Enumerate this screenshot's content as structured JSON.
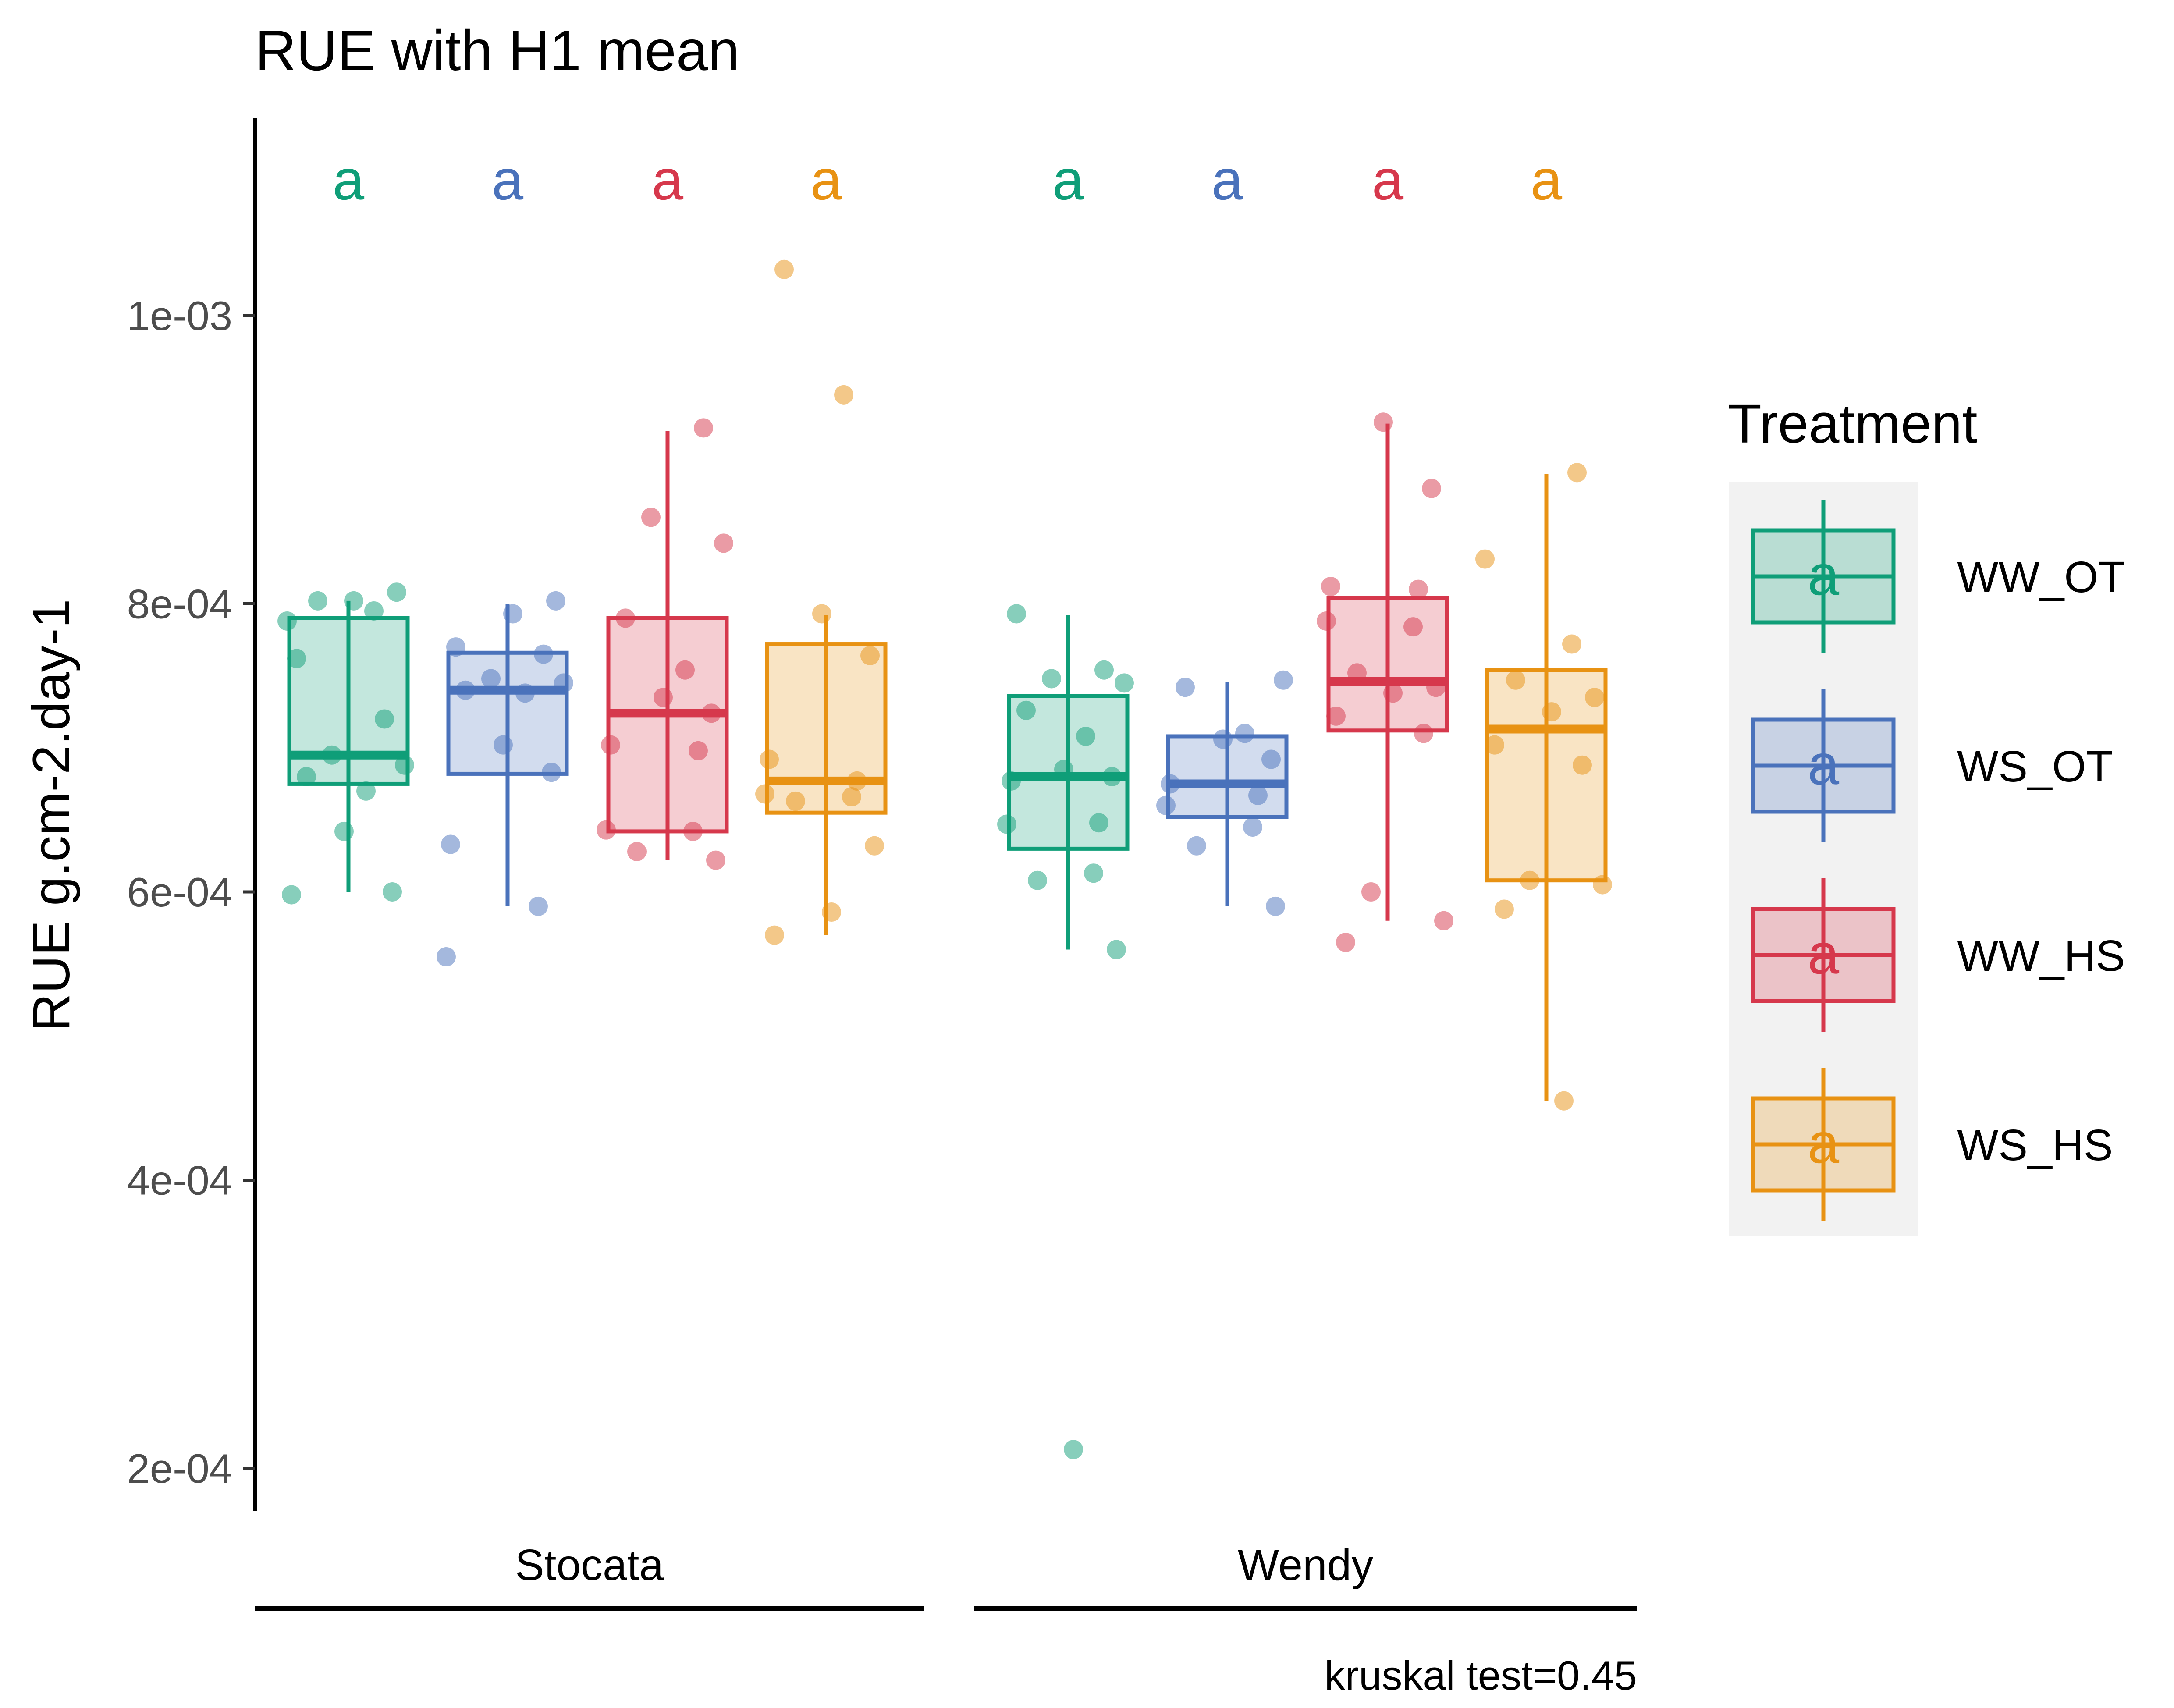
{
  "chart_data": {
    "type": "box",
    "title": "RUE with H1 mean",
    "ylabel": "RUE g.cm-2.day-1",
    "xlabel": "",
    "caption": "kruskal test=0.45",
    "ylim": [
      0.000168,
      0.001152
    ],
    "yticks": [
      {
        "value": 0.0002,
        "label": "2e-04"
      },
      {
        "value": 0.0004,
        "label": "4e-04"
      },
      {
        "value": 0.0006,
        "label": "6e-04"
      },
      {
        "value": 0.0008,
        "label": "8e-04"
      },
      {
        "value": 0.001,
        "label": "1e-03"
      }
    ],
    "legend": {
      "title": "Treatment",
      "position": "right",
      "items": [
        {
          "name": "WW_OT",
          "color": "#0f9e78"
        },
        {
          "name": "WS_OT",
          "color": "#4a72bb"
        },
        {
          "name": "WW_HS",
          "color": "#d6384c"
        },
        {
          "name": "WS_HS",
          "color": "#e89213"
        }
      ],
      "key_glyph": "a"
    },
    "facets": [
      {
        "label": "Stocata",
        "groups": [
          {
            "treatment": "WW_OT",
            "sig": "a",
            "min": 0.0006,
            "q1": 0.000675,
            "median": 0.000695,
            "q3": 0.00079,
            "max": 0.000802,
            "points": [
              0.000788,
              0.000795,
              0.000802,
              0.000808,
              0.000802,
              0.000762,
              0.00072,
              0.000695,
              0.000688,
              0.00068,
              0.00067,
              0.000642,
              0.0006,
              0.000598
            ]
          },
          {
            "treatment": "WS_OT",
            "sig": "a",
            "min": 0.00059,
            "q1": 0.000682,
            "median": 0.00074,
            "q3": 0.000766,
            "max": 0.0008,
            "points": [
              0.000802,
              0.000793,
              0.00077,
              0.000765,
              0.000748,
              0.000745,
              0.00074,
              0.000738,
              0.000702,
              0.000683,
              0.000633,
              0.00059,
              0.000555
            ]
          },
          {
            "treatment": "WW_HS",
            "sig": "a",
            "min": 0.000622,
            "q1": 0.000642,
            "median": 0.000724,
            "q3": 0.00079,
            "max": 0.00092,
            "points": [
              0.000922,
              0.00086,
              0.000842,
              0.00079,
              0.000754,
              0.000735,
              0.000724,
              0.000702,
              0.000698,
              0.000643,
              0.000642,
              0.000628,
              0.000622
            ]
          },
          {
            "treatment": "WS_HS",
            "sig": "a",
            "min": 0.00057,
            "q1": 0.000655,
            "median": 0.000677,
            "q3": 0.000772,
            "max": 0.000792,
            "points": [
              0.001032,
              0.000945,
              0.000793,
              0.000764,
              0.000692,
              0.000677,
              0.000668,
              0.000666,
              0.000663,
              0.000632,
              0.000586,
              0.00057
            ]
          }
        ]
      },
      {
        "label": "Wendy",
        "groups": [
          {
            "treatment": "WW_OT",
            "sig": "a",
            "min": 0.00056,
            "q1": 0.00063,
            "median": 0.00068,
            "q3": 0.000736,
            "max": 0.000792,
            "points": [
              0.000793,
              0.000754,
              0.000748,
              0.000745,
              0.000726,
              0.000708,
              0.000685,
              0.00068,
              0.000677,
              0.000648,
              0.000647,
              0.000613,
              0.000608,
              0.00056,
              0.000213
            ]
          },
          {
            "treatment": "WS_OT",
            "sig": "a",
            "min": 0.00059,
            "q1": 0.000652,
            "median": 0.000675,
            "q3": 0.000708,
            "max": 0.000746,
            "points": [
              0.000747,
              0.000742,
              0.00071,
              0.000706,
              0.000692,
              0.000675,
              0.000667,
              0.00066,
              0.000645,
              0.000632,
              0.00059
            ]
          },
          {
            "treatment": "WW_HS",
            "sig": "a",
            "min": 0.00058,
            "q1": 0.000712,
            "median": 0.000746,
            "q3": 0.000804,
            "max": 0.000925,
            "points": [
              0.000926,
              0.00088,
              0.000812,
              0.00081,
              0.000788,
              0.000784,
              0.000752,
              0.000742,
              0.000738,
              0.000722,
              0.00071,
              0.0006,
              0.00058,
              0.000565
            ]
          },
          {
            "treatment": "WS_HS",
            "sig": "a",
            "min": 0.000455,
            "q1": 0.000608,
            "median": 0.000713,
            "q3": 0.000754,
            "max": 0.00089,
            "points": [
              0.000891,
              0.000831,
              0.000772,
              0.000747,
              0.000735,
              0.000725,
              0.000702,
              0.000688,
              0.000608,
              0.000605,
              0.000588,
              0.000455
            ]
          }
        ]
      }
    ]
  }
}
